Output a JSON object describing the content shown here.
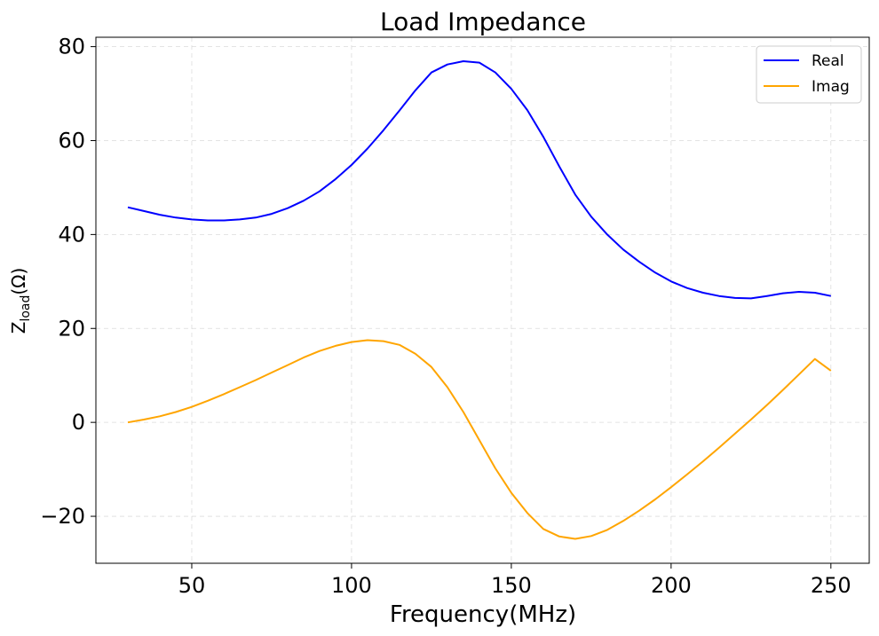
{
  "chart_data": {
    "type": "line",
    "title": "Load Impedance",
    "xlabel": "Frequency(MHz)",
    "ylabel": {
      "base": "Z",
      "sub": "load",
      "unit": "(Ω)"
    },
    "xlim": [
      20,
      262
    ],
    "ylim": [
      -30,
      82
    ],
    "xticks": [
      50,
      100,
      150,
      200,
      250
    ],
    "yticks": [
      -20,
      0,
      20,
      40,
      60,
      80
    ],
    "ytick_labels": [
      "−20",
      "0",
      "20",
      "40",
      "60",
      "80"
    ],
    "grid": true,
    "legend_position": "top-right",
    "series": [
      {
        "name": "Real",
        "color": "#0000ff",
        "x": [
          30,
          35,
          40,
          45,
          50,
          55,
          60,
          65,
          70,
          75,
          80,
          85,
          90,
          95,
          100,
          105,
          110,
          115,
          120,
          125,
          130,
          135,
          140,
          145,
          150,
          155,
          160,
          165,
          170,
          175,
          180,
          185,
          190,
          195,
          200,
          205,
          210,
          215,
          220,
          225,
          230,
          235,
          240,
          245,
          250
        ],
        "y": [
          45.8,
          45.0,
          44.2,
          43.6,
          43.2,
          43.0,
          43.0,
          43.2,
          43.6,
          44.4,
          45.6,
          47.2,
          49.2,
          51.8,
          54.8,
          58.3,
          62.2,
          66.4,
          70.7,
          74.5,
          76.2,
          76.9,
          76.6,
          74.5,
          71.0,
          66.5,
          60.8,
          54.5,
          48.5,
          43.8,
          40.0,
          36.8,
          34.2,
          31.9,
          30.0,
          28.6,
          27.6,
          26.9,
          26.5,
          26.4,
          26.9,
          27.5,
          27.8,
          27.6,
          26.9
        ]
      },
      {
        "name": "Imag",
        "color": "#ffa500",
        "x": [
          30,
          35,
          40,
          45,
          50,
          55,
          60,
          65,
          70,
          75,
          80,
          85,
          90,
          95,
          100,
          105,
          110,
          115,
          120,
          125,
          130,
          135,
          140,
          145,
          150,
          155,
          160,
          165,
          170,
          175,
          180,
          185,
          190,
          195,
          200,
          205,
          210,
          215,
          220,
          225,
          230,
          235,
          240,
          245,
          250
        ],
        "y": [
          0.0,
          0.6,
          1.3,
          2.2,
          3.3,
          4.6,
          6.0,
          7.5,
          9.0,
          10.6,
          12.2,
          13.8,
          15.2,
          16.3,
          17.1,
          17.5,
          17.3,
          16.5,
          14.6,
          11.8,
          7.5,
          2.2,
          -3.8,
          -9.8,
          -15.0,
          -19.3,
          -22.7,
          -24.3,
          -24.8,
          -24.2,
          -22.9,
          -21.0,
          -18.8,
          -16.4,
          -13.8,
          -11.1,
          -8.3,
          -5.4,
          -2.4,
          0.6,
          3.7,
          6.9,
          10.2,
          13.5,
          11.0
        ]
      }
    ]
  }
}
